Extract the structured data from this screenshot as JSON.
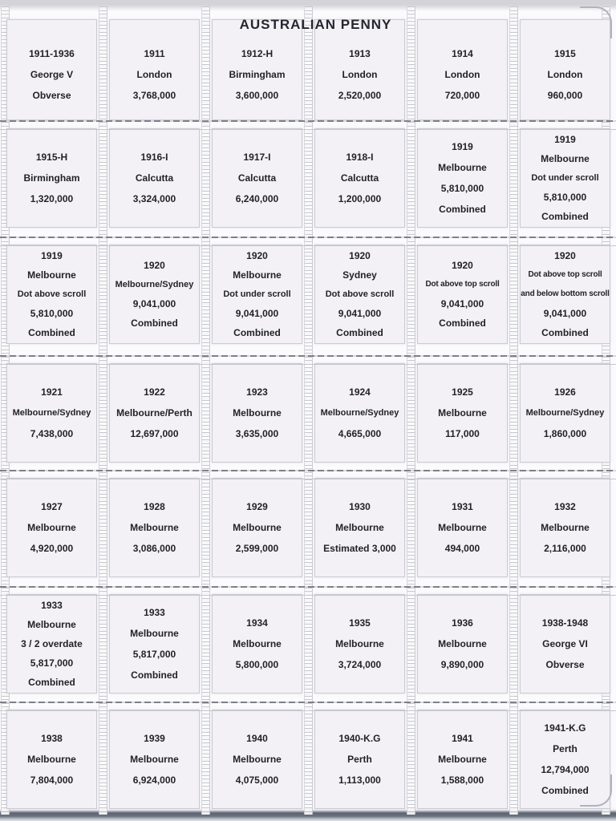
{
  "page": {
    "title": "AUSTRALIAN PENNY"
  },
  "colors": {
    "card_bg": "#f3f1f6",
    "page_bg": "#fbfbfd",
    "text": "#222228",
    "stitch": "#c2c2ca",
    "seam_dash": "#7f7f89"
  },
  "grid": {
    "rows": [
      [
        {
          "lines": [
            "1911-1936",
            "George V",
            "Obverse"
          ]
        },
        {
          "lines": [
            "1911",
            "London",
            "3,768,000"
          ]
        },
        {
          "lines": [
            "1912-H",
            "Birmingham",
            "3,600,000"
          ]
        },
        {
          "lines": [
            "1913",
            "London",
            "2,520,000"
          ]
        },
        {
          "lines": [
            "1914",
            "London",
            "720,000"
          ]
        },
        {
          "lines": [
            "1915",
            "London",
            "960,000"
          ]
        }
      ],
      [
        {
          "lines": [
            "1915-H",
            "Birmingham",
            "1,320,000"
          ]
        },
        {
          "lines": [
            "1916-I",
            "Calcutta",
            "3,324,000"
          ]
        },
        {
          "lines": [
            "1917-I",
            "Calcutta",
            "6,240,000"
          ]
        },
        {
          "lines": [
            "1918-I",
            "Calcutta",
            "1,200,000"
          ]
        },
        {
          "lines": [
            "1919",
            "Melbourne",
            "5,810,000",
            "Combined"
          ]
        },
        {
          "lines": [
            "1919",
            "Melbourne",
            "Dot under scroll",
            "5,810,000",
            "Combined"
          ]
        }
      ],
      [
        {
          "lines": [
            "1919",
            "Melbourne",
            "Dot above scroll",
            "5,810,000",
            "Combined"
          ]
        },
        {
          "lines": [
            "1920",
            "Melbourne/Sydney",
            "",
            "9,041,000",
            "Combined"
          ]
        },
        {
          "lines": [
            "1920",
            "Melbourne",
            "Dot under scroll",
            "9,041,000",
            "Combined"
          ]
        },
        {
          "lines": [
            "1920",
            "Sydney",
            "Dot above scroll",
            "9,041,000",
            "Combined"
          ]
        },
        {
          "lines": [
            "1920",
            "",
            "Dot above top scroll",
            "9,041,000",
            "Combined"
          ]
        },
        {
          "lines": [
            "1920",
            "Dot above top scroll",
            "and below bottom scroll",
            "9,041,000",
            "Combined"
          ]
        }
      ],
      [
        {
          "lines": [
            "1921",
            "Melbourne/Sydney",
            "7,438,000"
          ]
        },
        {
          "lines": [
            "1922",
            "Melbourne/Perth",
            "12,697,000"
          ]
        },
        {
          "lines": [
            "1923",
            "Melbourne",
            "3,635,000"
          ]
        },
        {
          "lines": [
            "1924",
            "Melbourne/Sydney",
            "4,665,000"
          ]
        },
        {
          "lines": [
            "1925",
            "Melbourne",
            "117,000"
          ]
        },
        {
          "lines": [
            "1926",
            "Melbourne/Sydney",
            "1,860,000"
          ]
        }
      ],
      [
        {
          "lines": [
            "1927",
            "Melbourne",
            "4,920,000"
          ]
        },
        {
          "lines": [
            "1928",
            "Melbourne",
            "3,086,000"
          ]
        },
        {
          "lines": [
            "1929",
            "Melbourne",
            "2,599,000"
          ]
        },
        {
          "lines": [
            "1930",
            "Melbourne",
            "Estimated 3,000"
          ]
        },
        {
          "lines": [
            "1931",
            "Melbourne",
            "494,000"
          ]
        },
        {
          "lines": [
            "1932",
            "Melbourne",
            "2,116,000"
          ]
        }
      ],
      [
        {
          "lines": [
            "1933",
            "Melbourne",
            "3 / 2 overdate",
            "5,817,000",
            "Combined"
          ]
        },
        {
          "lines": [
            "1933",
            "Melbourne",
            "5,817,000",
            "Combined"
          ]
        },
        {
          "lines": [
            "1934",
            "Melbourne",
            "5,800,000"
          ]
        },
        {
          "lines": [
            "1935",
            "Melbourne",
            "3,724,000"
          ]
        },
        {
          "lines": [
            "1936",
            "Melbourne",
            "9,890,000"
          ]
        },
        {
          "lines": [
            "1938-1948",
            "George VI",
            "Obverse"
          ]
        }
      ],
      [
        {
          "lines": [
            "1938",
            "Melbourne",
            "7,804,000"
          ]
        },
        {
          "lines": [
            "1939",
            "Melbourne",
            "6,924,000"
          ]
        },
        {
          "lines": [
            "1940",
            "Melbourne",
            "4,075,000"
          ]
        },
        {
          "lines": [
            "1940-K.G",
            "Perth",
            "1,113,000"
          ]
        },
        {
          "lines": [
            "1941",
            "Melbourne",
            "1,588,000"
          ]
        },
        {
          "lines": [
            "1941-K.G",
            "Perth",
            "12,794,000",
            "Combined"
          ]
        }
      ]
    ]
  }
}
